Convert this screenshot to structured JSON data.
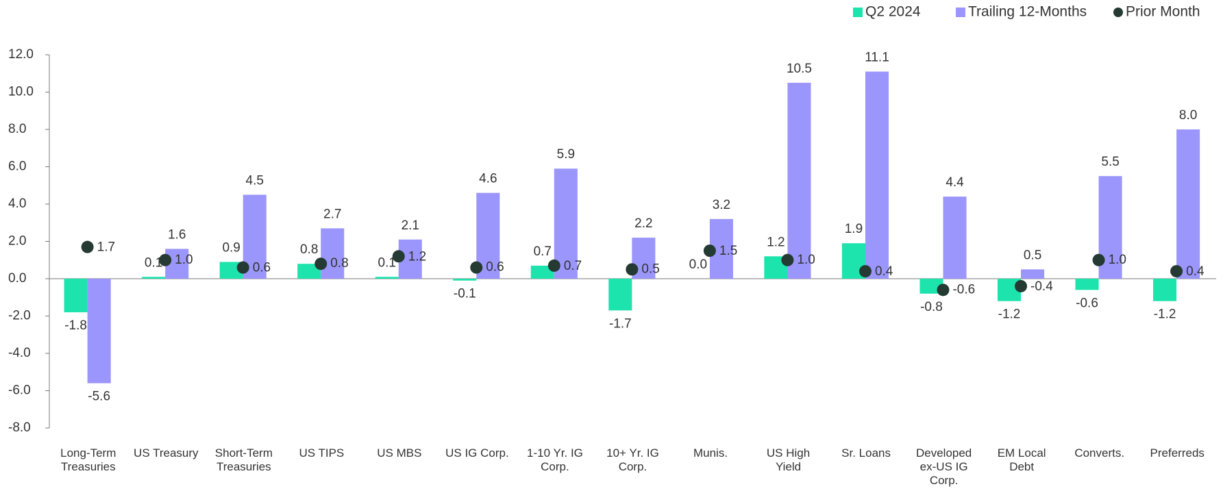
{
  "chart_data": {
    "type": "bar",
    "categories": [
      "Long-Term Treasuries",
      "US Treasury",
      "Short-Term Treasuries",
      "US TIPS",
      "US MBS",
      "US IG Corp.",
      "1-10 Yr. IG Corp.",
      "10+ Yr. IG Corp.",
      "Munis.",
      "US High Yield",
      "Sr. Loans",
      "Developed ex-US IG Corp.",
      "EM Local Debt",
      "Converts.",
      "Preferreds"
    ],
    "series": [
      {
        "name": "Q2 2024",
        "color": "#1de3ad",
        "marker": "bar",
        "values": [
          -1.8,
          0.1,
          0.9,
          0.8,
          0.1,
          -0.1,
          0.7,
          -1.7,
          0.0,
          1.2,
          1.9,
          -0.8,
          -1.2,
          -0.6,
          -1.2
        ],
        "value_labels": [
          "-1.8",
          "0.1",
          "0.9",
          "0.8",
          "0.1",
          "-0.1",
          "0.7",
          "-1.7",
          "0.0",
          "1.2",
          "1.9",
          "-0.8",
          "-1.2",
          "-0.6",
          "-1.2"
        ]
      },
      {
        "name": "Trailing 12-Months",
        "color": "#9b96fb",
        "marker": "bar",
        "values": [
          -5.6,
          1.6,
          4.5,
          2.7,
          2.1,
          4.6,
          5.9,
          2.2,
          3.2,
          10.5,
          11.1,
          4.4,
          0.5,
          5.5,
          8.0
        ],
        "value_labels": [
          "-5.6",
          "1.6",
          "4.5",
          "2.7",
          "2.1",
          "4.6",
          "5.9",
          "2.2",
          "3.2",
          "10.5",
          "11.1",
          "4.4",
          "0.5",
          "5.5",
          "8.0"
        ]
      },
      {
        "name": "Prior Month",
        "color": "#243a32",
        "marker": "dot",
        "values": [
          1.7,
          1.0,
          0.6,
          0.8,
          1.2,
          0.6,
          0.7,
          0.5,
          1.5,
          1.0,
          0.4,
          -0.6,
          -0.4,
          1.0,
          0.4
        ],
        "value_labels": [
          "1.7",
          "1.0",
          "0.6",
          "0.8",
          "1.2",
          "0.6",
          "0.7",
          "0.5",
          "1.5",
          "1.0",
          "0.4",
          "-0.6",
          "-0.4",
          "1.0",
          "0.4"
        ]
      }
    ],
    "ylim": [
      -8,
      12
    ],
    "yticks": [
      {
        "value": -8,
        "label": "-8.0"
      },
      {
        "value": -6,
        "label": "-6.0"
      },
      {
        "value": -4,
        "label": "-4.0"
      },
      {
        "value": -2,
        "label": "-2.0"
      },
      {
        "value": 0,
        "label": "0.0"
      },
      {
        "value": 2,
        "label": "2.0"
      },
      {
        "value": 4,
        "label": "4.0"
      },
      {
        "value": 6,
        "label": "6.0"
      },
      {
        "value": 8,
        "label": "8.0"
      },
      {
        "value": 10,
        "label": "10.0"
      },
      {
        "value": 12,
        "label": "12.0"
      }
    ],
    "grid": false,
    "legend": "top-right"
  }
}
